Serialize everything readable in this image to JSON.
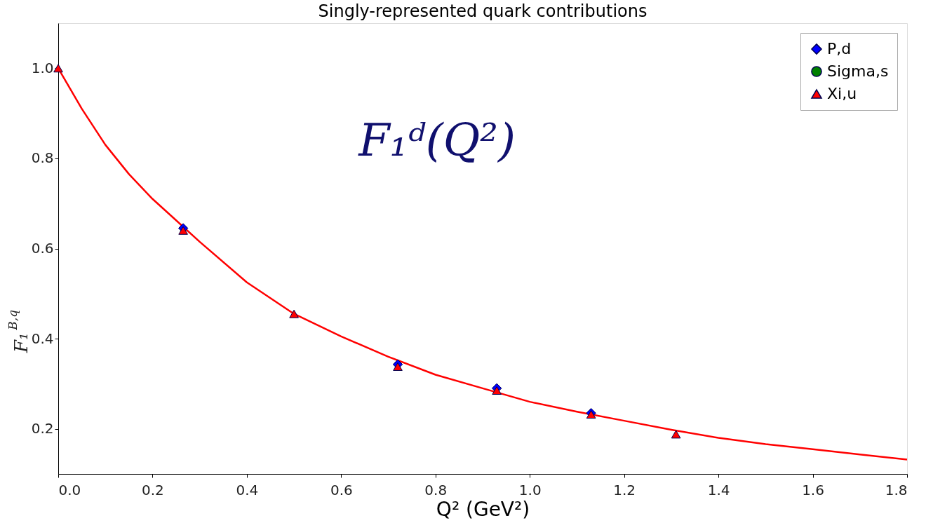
{
  "chart_data": {
    "type": "scatter",
    "title": "Singly-represented quark contributions",
    "xlabel": "Q² (GeV²)",
    "ylabel": "F₁$^{B,q}$",
    "x": [
      0,
      0.265,
      0.5,
      0.72,
      0.93,
      1.13,
      1.31
    ],
    "series": [
      {
        "name": "P,d",
        "color": "#0000ff",
        "marker": "diamond",
        "values": [
          null,
          0.645,
          null,
          0.343,
          0.29,
          0.235,
          null
        ]
      },
      {
        "name": "Sigma,s",
        "color": "#008000",
        "marker": "circle",
        "values": [
          null,
          null,
          null,
          null,
          null,
          null,
          null
        ]
      },
      {
        "name": "Xi,u",
        "color": "#ff0000",
        "marker": "triangle",
        "values": [
          1.0,
          0.64,
          0.455,
          0.338,
          0.285,
          0.232,
          0.188
        ]
      },
      {
        "type": "line",
        "color": "#ff0000",
        "x": [
          0,
          0.05,
          0.1,
          0.15,
          0.2,
          0.3,
          0.4,
          0.5,
          0.6,
          0.7,
          0.8,
          0.9,
          1.0,
          1.1,
          1.2,
          1.3,
          1.4,
          1.5,
          1.6,
          1.7,
          1.8
        ],
        "values": [
          1.0,
          0.91,
          0.83,
          0.765,
          0.71,
          0.615,
          0.525,
          0.455,
          0.405,
          0.36,
          0.32,
          0.29,
          0.26,
          0.238,
          0.218,
          0.198,
          0.18,
          0.166,
          0.155,
          0.143,
          0.132
        ]
      }
    ],
    "xlim": [
      0,
      1.8
    ],
    "xticks": [
      {
        "value": 0,
        "label": "0.0"
      },
      0.2,
      0.4,
      0.6,
      0.8,
      {
        "value": 1,
        "label": "1.0"
      },
      1.2,
      1.4,
      1.6,
      1.8
    ],
    "ylim": [
      0.1,
      1.1
    ],
    "yticks": [
      0.2,
      0.4,
      0.6,
      0.8,
      {
        "value": 1,
        "label": "1.0"
      }
    ],
    "grid": false,
    "legend": "top right",
    "annotations": [
      "F₁ᵈ(Q²)"
    ]
  }
}
